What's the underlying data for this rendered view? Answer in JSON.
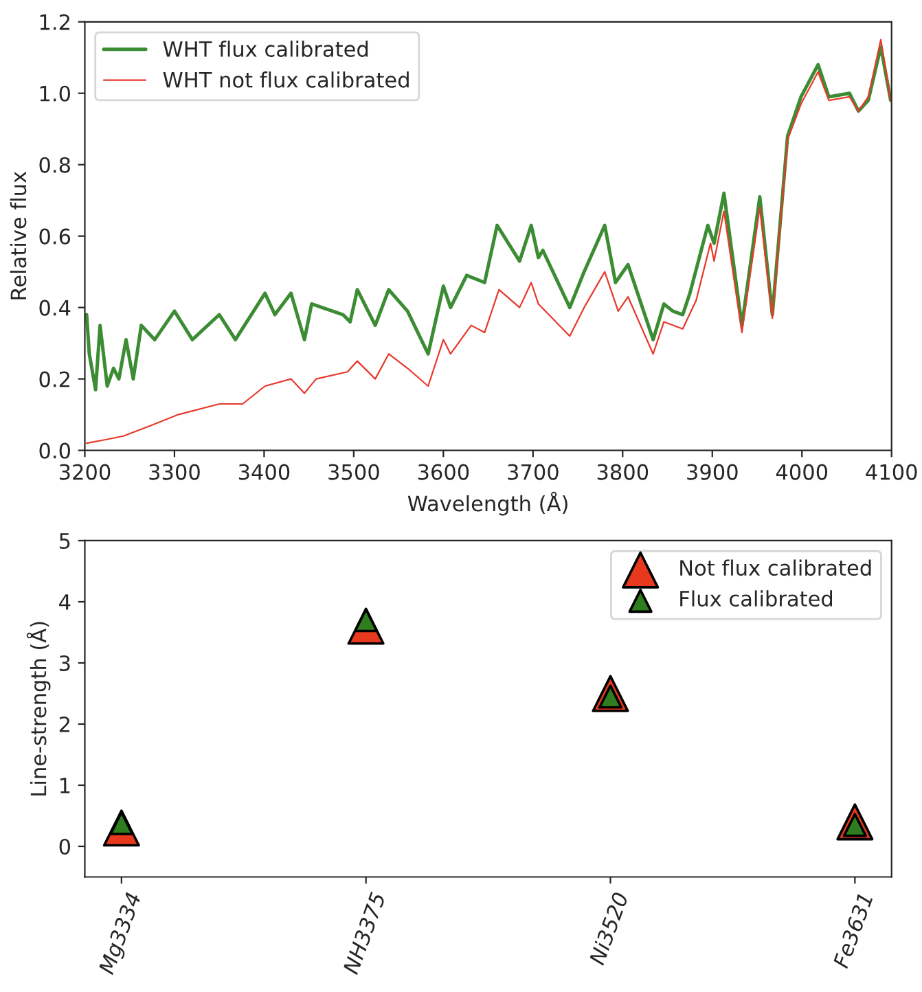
{
  "chart_data": [
    {
      "type": "line",
      "xlabel": "Wavelength (Å)",
      "ylabel": "Relative flux",
      "xlim": [
        3200,
        4100
      ],
      "xticks": [
        3200,
        3300,
        3400,
        3500,
        3600,
        3700,
        3800,
        3900,
        4000,
        4100
      ],
      "ylim": [
        0,
        1.2
      ],
      "yticks": [
        {
          "value": 0,
          "label": "0.0"
        },
        {
          "value": 0.2,
          "label": "0.2"
        },
        {
          "value": 0.4,
          "label": "0.4"
        },
        {
          "value": 0.6,
          "label": "0.6"
        },
        {
          "value": 0.8,
          "label": "0.8"
        },
        {
          "value": 1.0,
          "label": "1.0"
        },
        {
          "value": 1.2,
          "label": "1.2"
        }
      ],
      "legend": "top left",
      "grid": false,
      "line_style": "solid",
      "marker": "none",
      "series": [
        {
          "name": "WHT flux calibrated",
          "color": "#3c8c34",
          "x": [
            3202,
            3205,
            3212,
            3217,
            3225,
            3232,
            3238,
            3246,
            3254,
            3263,
            3278,
            3300,
            3320,
            3350,
            3368,
            3401,
            3412,
            3430,
            3445,
            3453,
            3488,
            3496,
            3504,
            3524,
            3539,
            3560,
            3583,
            3600,
            3608,
            3626,
            3646,
            3660,
            3685,
            3698,
            3706,
            3711,
            3741,
            3757,
            3780,
            3792,
            3806,
            3834,
            3846,
            3856,
            3867,
            3875,
            3895,
            3902,
            3913,
            3933,
            3953,
            3967,
            3984,
            3999,
            4018,
            4030,
            4053,
            4063,
            4074,
            4088,
            4099
          ],
          "values": [
            0.38,
            0.27,
            0.17,
            0.35,
            0.18,
            0.23,
            0.2,
            0.31,
            0.2,
            0.35,
            0.31,
            0.39,
            0.31,
            0.38,
            0.31,
            0.44,
            0.38,
            0.44,
            0.31,
            0.41,
            0.38,
            0.36,
            0.45,
            0.35,
            0.45,
            0.39,
            0.27,
            0.46,
            0.4,
            0.49,
            0.47,
            0.63,
            0.53,
            0.63,
            0.54,
            0.56,
            0.4,
            0.5,
            0.63,
            0.47,
            0.52,
            0.31,
            0.41,
            0.39,
            0.38,
            0.44,
            0.63,
            0.58,
            0.72,
            0.35,
            0.71,
            0.38,
            0.88,
            0.99,
            1.08,
            0.99,
            1.0,
            0.95,
            0.98,
            1.13,
            0.98
          ]
        },
        {
          "name": "WHT not flux calibrated",
          "color": "#e8392b",
          "x": [
            3202,
            3223,
            3243,
            3274,
            3304,
            3350,
            3376,
            3401,
            3430,
            3445,
            3458,
            3493,
            3504,
            3524,
            3539,
            3560,
            3583,
            3600,
            3608,
            3631,
            3646,
            3662,
            3685,
            3698,
            3706,
            3741,
            3757,
            3780,
            3795,
            3806,
            3834,
            3846,
            3867,
            3882,
            3898,
            3902,
            3913,
            3933,
            3953,
            3967,
            3984,
            3999,
            4018,
            4030,
            4053,
            4063,
            4074,
            4088,
            4099
          ],
          "values": [
            0.02,
            0.03,
            0.04,
            0.07,
            0.1,
            0.13,
            0.13,
            0.18,
            0.2,
            0.16,
            0.2,
            0.22,
            0.25,
            0.2,
            0.27,
            0.23,
            0.18,
            0.31,
            0.27,
            0.35,
            0.33,
            0.45,
            0.4,
            0.47,
            0.41,
            0.32,
            0.4,
            0.5,
            0.39,
            0.43,
            0.27,
            0.36,
            0.34,
            0.42,
            0.58,
            0.53,
            0.67,
            0.33,
            0.68,
            0.37,
            0.87,
            0.97,
            1.06,
            0.98,
            0.99,
            0.95,
            0.99,
            1.15,
            0.98
          ]
        }
      ]
    },
    {
      "type": "scatter",
      "ylabel": "Line-strength (Å)",
      "categories": [
        "Mg3334",
        "NH3375",
        "Ni3520",
        "Fe3631"
      ],
      "ylim": [
        -0.5,
        5
      ],
      "yticks": [
        0,
        1,
        2,
        3,
        4,
        5
      ],
      "legend": "top right",
      "grid": false,
      "marker": "triangle",
      "series": [
        {
          "name": "Not flux calibrated",
          "color": "#e8391f",
          "values": [
            0.3,
            3.6,
            2.5,
            0.4
          ]
        },
        {
          "name": "Flux calibrated",
          "color": "#2e7d1e",
          "values": [
            0.38,
            3.7,
            2.45,
            0.35
          ]
        }
      ]
    }
  ]
}
